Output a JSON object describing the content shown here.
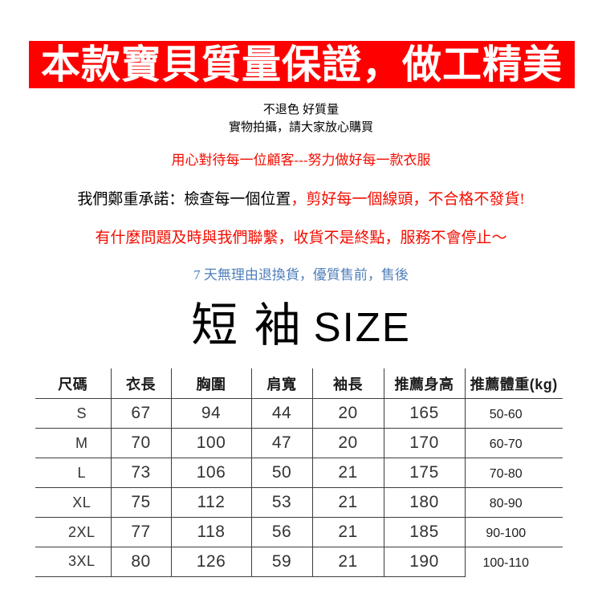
{
  "colors": {
    "banner_bg": "#fe0000",
    "banner_fg": "#ffffff",
    "accent_red": "#f20d00",
    "info_blue": "#4f7fba",
    "table_line": "#3d3d3d"
  },
  "banner": {
    "title": "本款寶貝質量保證，做工精美"
  },
  "notes": {
    "line1": "不退色 好質量",
    "line2": "實物拍攝，請大家放心購買",
    "line3": "用心對待每一位顧客---努力做好每一款衣服",
    "line4_black": "我們鄭重承諾：檢查每一個位置",
    "line4_red": "，剪好每一個線頭，不合格不發貨!",
    "line5": "有什麼問題及時與我們聯繫，收貨不是終點，服務不會停止～",
    "line6": "7 天無理由退換貨，優質售前，售後"
  },
  "heading": {
    "cjk": "短 袖",
    "latin": "SIZE"
  },
  "size_table": {
    "headers": [
      "尺碼",
      "衣長",
      "胸圍",
      "肩寬",
      "袖長",
      "推薦身高",
      "推薦體重(kg)"
    ],
    "rows": [
      [
        "S",
        "67",
        "94",
        "44",
        "20",
        "165",
        "50-60"
      ],
      [
        "M",
        "70",
        "100",
        "47",
        "20",
        "170",
        "60-70"
      ],
      [
        "L",
        "73",
        "106",
        "50",
        "21",
        "175",
        "70-80"
      ],
      [
        "XL",
        "75",
        "112",
        "53",
        "21",
        "180",
        "80-90"
      ],
      [
        "2XL",
        "77",
        "118",
        "56",
        "21",
        "185",
        "90-100"
      ],
      [
        "3XL",
        "80",
        "126",
        "59",
        "21",
        "190",
        "100-110"
      ]
    ]
  }
}
